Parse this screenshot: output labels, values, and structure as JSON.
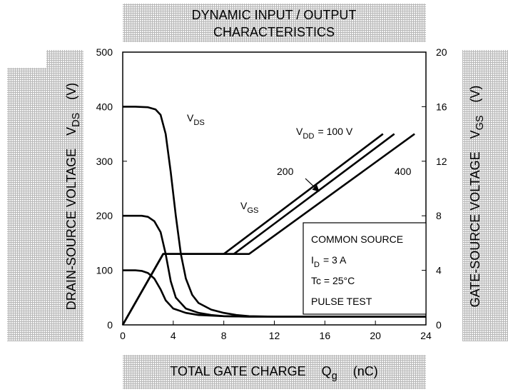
{
  "chart_data": {
    "type": "line",
    "title": [
      "DYNAMIC INPUT / OUTPUT",
      "CHARACTERISTICS"
    ],
    "xlabel": {
      "main": "TOTAL GATE CHARGE",
      "symbol": "Q",
      "subscript": "g",
      "unit": "(nC)"
    },
    "ylabel": {
      "main": "DRAIN-SOURCE VOLTAGE",
      "symbol": "V",
      "subscript": "DS",
      "unit": "(V)"
    },
    "y2label": {
      "main": "GATE-SOURCE VOLTAGE",
      "symbol": "V",
      "subscript": "GS",
      "unit": "(V)"
    },
    "xlim": [
      0,
      24
    ],
    "xticks": [
      0,
      4,
      8,
      12,
      16,
      20,
      24
    ],
    "ylim": [
      0,
      500
    ],
    "yticks": [
      0,
      100,
      200,
      300,
      400,
      500
    ],
    "y2lim": [
      0,
      20
    ],
    "y2ticks": [
      0,
      4,
      8,
      12,
      16,
      20
    ],
    "series": [
      {
        "color": "#000000",
        "x": [
          0,
          1,
          2,
          2.6,
          3,
          3.4,
          3.8,
          4.2,
          4.6,
          5,
          5.5,
          6,
          7,
          8,
          9,
          10,
          12,
          24
        ],
        "values": [
          400,
          400,
          399,
          395,
          385,
          350,
          280,
          200,
          130,
          85,
          55,
          40,
          28,
          22,
          18,
          16,
          15,
          15
        ]
      },
      {
        "color": "#000000",
        "x": [
          0,
          1.5,
          2,
          2.5,
          3,
          3.4,
          3.8,
          4.2,
          5,
          6,
          7,
          8,
          10,
          24
        ],
        "values": [
          200,
          200,
          198,
          190,
          170,
          130,
          80,
          50,
          30,
          22,
          18,
          16,
          15,
          15
        ]
      },
      {
        "color": "#000000",
        "x": [
          0,
          1,
          1.5,
          2,
          2.5,
          3,
          3.4,
          4,
          5,
          6,
          8,
          10,
          24
        ],
        "values": [
          100,
          100,
          99,
          95,
          85,
          65,
          45,
          30,
          22,
          18,
          16,
          15,
          15
        ]
      },
      {
        "color": "#000000",
        "axis": "y2",
        "x": [
          0,
          3.2,
          8,
          20.6
        ],
        "values": [
          0,
          5.2,
          5.2,
          14
        ]
      },
      {
        "color": "#000000",
        "axis": "y2",
        "x": [
          0,
          3.2,
          8.8,
          21.5
        ],
        "values": [
          0,
          5.2,
          5.2,
          14
        ]
      },
      {
        "color": "#000000",
        "axis": "y2",
        "x": [
          0,
          3.2,
          10,
          23.1
        ],
        "values": [
          0,
          5.2,
          5.2,
          14
        ]
      }
    ],
    "annotations": [
      {
        "symbol": "V",
        "subscript": "DS"
      },
      {
        "symbol": "V",
        "subscript": "GS"
      },
      {
        "symbol": "V",
        "subscript": "DD",
        "text": "= 100 V"
      },
      {
        "text": "200"
      },
      {
        "text": "400"
      }
    ],
    "conditions": [
      {
        "text": "COMMON SOURCE"
      },
      {
        "symbol": "I",
        "subscript": "D",
        "text": "= 3 A"
      },
      {
        "text": "Tc = 25°C"
      },
      {
        "text": "PULSE TEST"
      }
    ]
  }
}
